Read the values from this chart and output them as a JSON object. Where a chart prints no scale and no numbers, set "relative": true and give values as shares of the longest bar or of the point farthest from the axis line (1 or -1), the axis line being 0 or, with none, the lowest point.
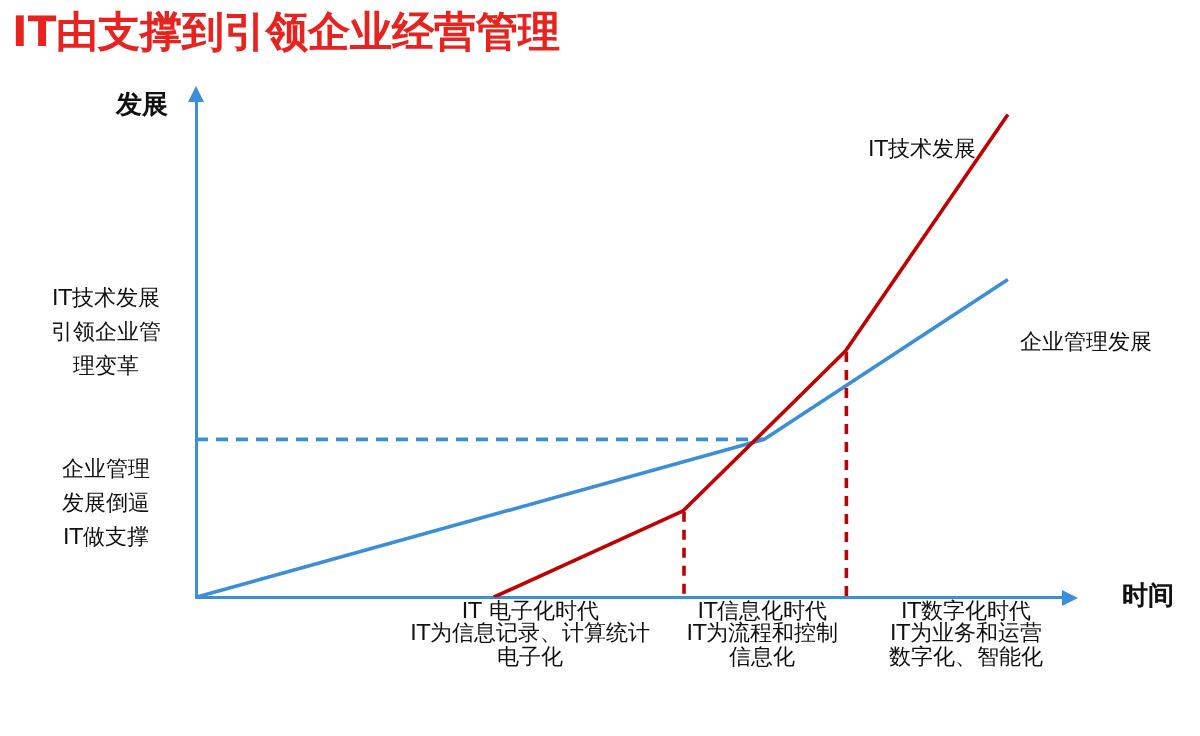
{
  "chart_data": {
    "type": "line",
    "title": "IT由支撑到引领企业经营管理",
    "xlabel": "时间",
    "ylabel": "发展",
    "relative": true,
    "legend": false,
    "marker": "none",
    "grid": false,
    "categories": [
      null,
      null,
      null,
      null,
      null,
      null,
      null,
      null,
      null,
      null,
      null,
      null,
      null,
      null,
      null,
      null,
      null,
      null,
      null,
      null,
      null,
      null,
      null,
      null,
      null,
      null,
      null,
      null,
      null,
      null,
      null,
      null,
      null
    ],
    "series": [
      {
        "name": "IT技术发展",
        "color": "#c00000",
        "values": [
          null,
          null,
          null,
          null,
          null,
          null,
          null,
          null,
          null,
          null,
          null,
          0,
          null,
          null,
          null,
          null,
          null,
          null,
          0.179,
          null,
          null,
          null,
          null,
          null,
          0.51,
          null,
          null,
          null,
          null,
          null,
          1,
          null,
          null
        ]
      },
      {
        "name": "企业管理发展",
        "color": "#3b8ed8",
        "values": [
          0,
          null,
          null,
          null,
          null,
          null,
          null,
          null,
          null,
          null,
          null,
          null,
          null,
          null,
          null,
          null,
          null,
          null,
          null,
          null,
          null,
          0.327,
          null,
          null,
          null,
          null,
          null,
          null,
          null,
          null,
          0.658,
          null,
          null
        ]
      },
      {
        "color": "#3b8ed8",
        "line_style": "dashed",
        "values": [
          0.327,
          null,
          null,
          null,
          null,
          null,
          null,
          null,
          null,
          null,
          null,
          null,
          null,
          null,
          null,
          null,
          null,
          null,
          null,
          null,
          null,
          0.327,
          null,
          null,
          null,
          null,
          null,
          null,
          null,
          null,
          null,
          null,
          null
        ]
      }
    ],
    "annotations": [
      "IT 电子化时代",
      "IT为信息记录、计算统计电子化",
      "IT信息化时代",
      "IT为流程和控制信息化",
      "IT数字化时代",
      "IT为业务和运营数字化、智能化",
      "IT技术发展引领企业管理变革",
      "企业管理发展倒逼IT做支撑"
    ]
  }
}
